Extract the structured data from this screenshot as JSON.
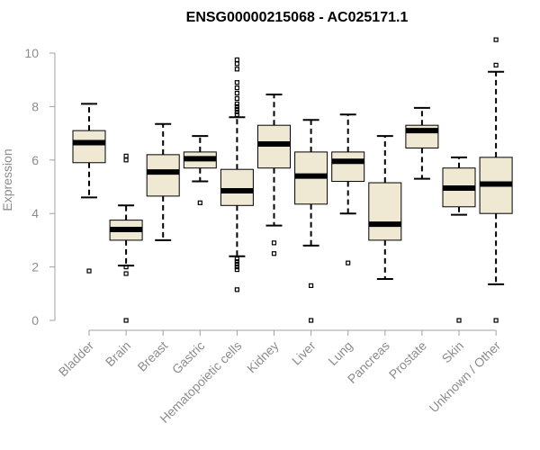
{
  "colors": {
    "box_fill": "#efe8d2",
    "line": "#000000",
    "axis": "#a0a0a0",
    "label": "#8c8c8c"
  },
  "chart_data": {
    "type": "box",
    "title": "ENSG00000215068 - AC025171.1",
    "xlabel": "",
    "ylabel": "Expression",
    "ylim": [
      0,
      10.7
    ],
    "yticks": [
      0,
      2,
      4,
      6,
      8,
      10
    ],
    "categories": [
      "Bladder",
      "Brain",
      "Breast",
      "Gastric",
      "Hematopoietic cells",
      "Kidney",
      "Liver",
      "Lung",
      "Pancreas",
      "Prostate",
      "Skin",
      "Unknown / Other"
    ],
    "boxes": [
      {
        "category": "Bladder",
        "whisker_low": 4.6,
        "q1": 5.9,
        "median": 6.65,
        "q3": 7.1,
        "whisker_high": 8.1,
        "outliers": [
          1.85
        ]
      },
      {
        "category": "Brain",
        "whisker_low": 2.05,
        "q1": 3.0,
        "median": 3.4,
        "q3": 3.75,
        "whisker_high": 4.3,
        "outliers": [
          0.0,
          1.75,
          2.0,
          6.0,
          6.15
        ]
      },
      {
        "category": "Breast",
        "whisker_low": 3.0,
        "q1": 4.65,
        "median": 5.55,
        "q3": 6.2,
        "whisker_high": 7.35,
        "outliers": []
      },
      {
        "category": "Gastric",
        "whisker_low": 5.2,
        "q1": 5.7,
        "median": 6.05,
        "q3": 6.3,
        "whisker_high": 6.9,
        "outliers": [
          4.4
        ]
      },
      {
        "category": "Hematopoietic cells",
        "whisker_low": 2.4,
        "q1": 4.3,
        "median": 4.85,
        "q3": 5.65,
        "whisker_high": 7.6,
        "outliers": [
          1.15,
          1.9,
          2.0,
          2.1,
          2.2,
          2.3,
          7.7,
          7.8,
          7.9,
          8.0,
          8.1,
          8.3,
          8.5,
          8.7,
          8.9,
          9.4,
          9.6,
          9.75
        ]
      },
      {
        "category": "Kidney",
        "whisker_low": 3.55,
        "q1": 5.7,
        "median": 6.6,
        "q3": 7.3,
        "whisker_high": 8.45,
        "outliers": [
          2.5,
          2.9
        ]
      },
      {
        "category": "Liver",
        "whisker_low": 2.8,
        "q1": 4.35,
        "median": 5.4,
        "q3": 6.3,
        "whisker_high": 7.5,
        "outliers": [
          0.0,
          1.3
        ]
      },
      {
        "category": "Lung",
        "whisker_low": 4.0,
        "q1": 5.2,
        "median": 5.95,
        "q3": 6.3,
        "whisker_high": 7.7,
        "outliers": [
          2.15
        ]
      },
      {
        "category": "Pancreas",
        "whisker_low": 1.55,
        "q1": 3.0,
        "median": 3.6,
        "q3": 5.15,
        "whisker_high": 6.9,
        "outliers": []
      },
      {
        "category": "Prostate",
        "whisker_low": 5.3,
        "q1": 6.45,
        "median": 7.1,
        "q3": 7.3,
        "whisker_high": 7.95,
        "outliers": []
      },
      {
        "category": "Skin",
        "whisker_low": 3.95,
        "q1": 4.25,
        "median": 4.95,
        "q3": 5.7,
        "whisker_high": 6.1,
        "outliers": [
          0.0
        ]
      },
      {
        "category": "Unknown / Other",
        "whisker_low": 1.35,
        "q1": 4.0,
        "median": 5.1,
        "q3": 6.1,
        "whisker_high": 9.3,
        "outliers": [
          0.0,
          9.55,
          10.5
        ]
      }
    ]
  }
}
